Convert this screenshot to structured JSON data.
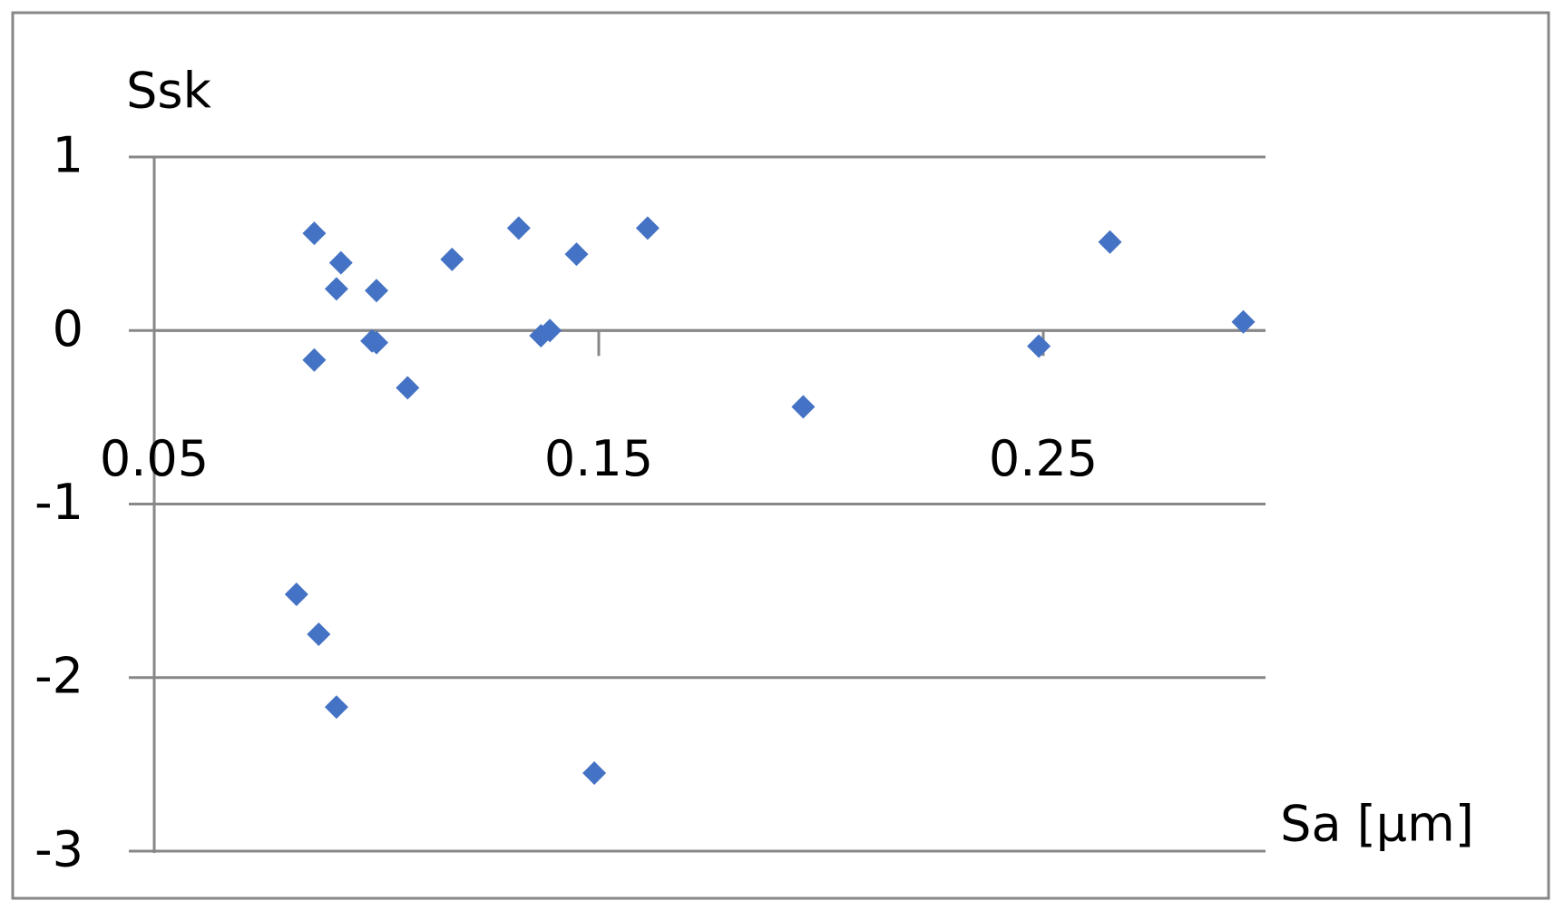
{
  "chart_data": {
    "type": "scatter",
    "x_label": "Sa [µm]",
    "y_label": "Ssk",
    "x": [
      0.086,
      0.092,
      0.091,
      0.1,
      0.086,
      0.099,
      0.1,
      0.107,
      0.117,
      0.132,
      0.137,
      0.139,
      0.145,
      0.161,
      0.196,
      0.249,
      0.265,
      0.295,
      0.082,
      0.087,
      0.091,
      0.149
    ],
    "values": [
      0.56,
      0.39,
      0.24,
      0.23,
      -0.17,
      -0.06,
      -0.07,
      -0.33,
      0.41,
      0.59,
      -0.03,
      0.0,
      0.44,
      0.59,
      -0.44,
      -0.09,
      0.51,
      0.05,
      -1.52,
      -1.75,
      -2.17,
      -2.55
    ],
    "color": "#4472c4",
    "xlim": [
      0.05,
      0.3
    ],
    "xticks": [
      0.05,
      0.15,
      0.25
    ],
    "ylim": [
      -3,
      1
    ],
    "yticks": [
      -3,
      -2,
      -1,
      0,
      1
    ],
    "grid": true
  }
}
